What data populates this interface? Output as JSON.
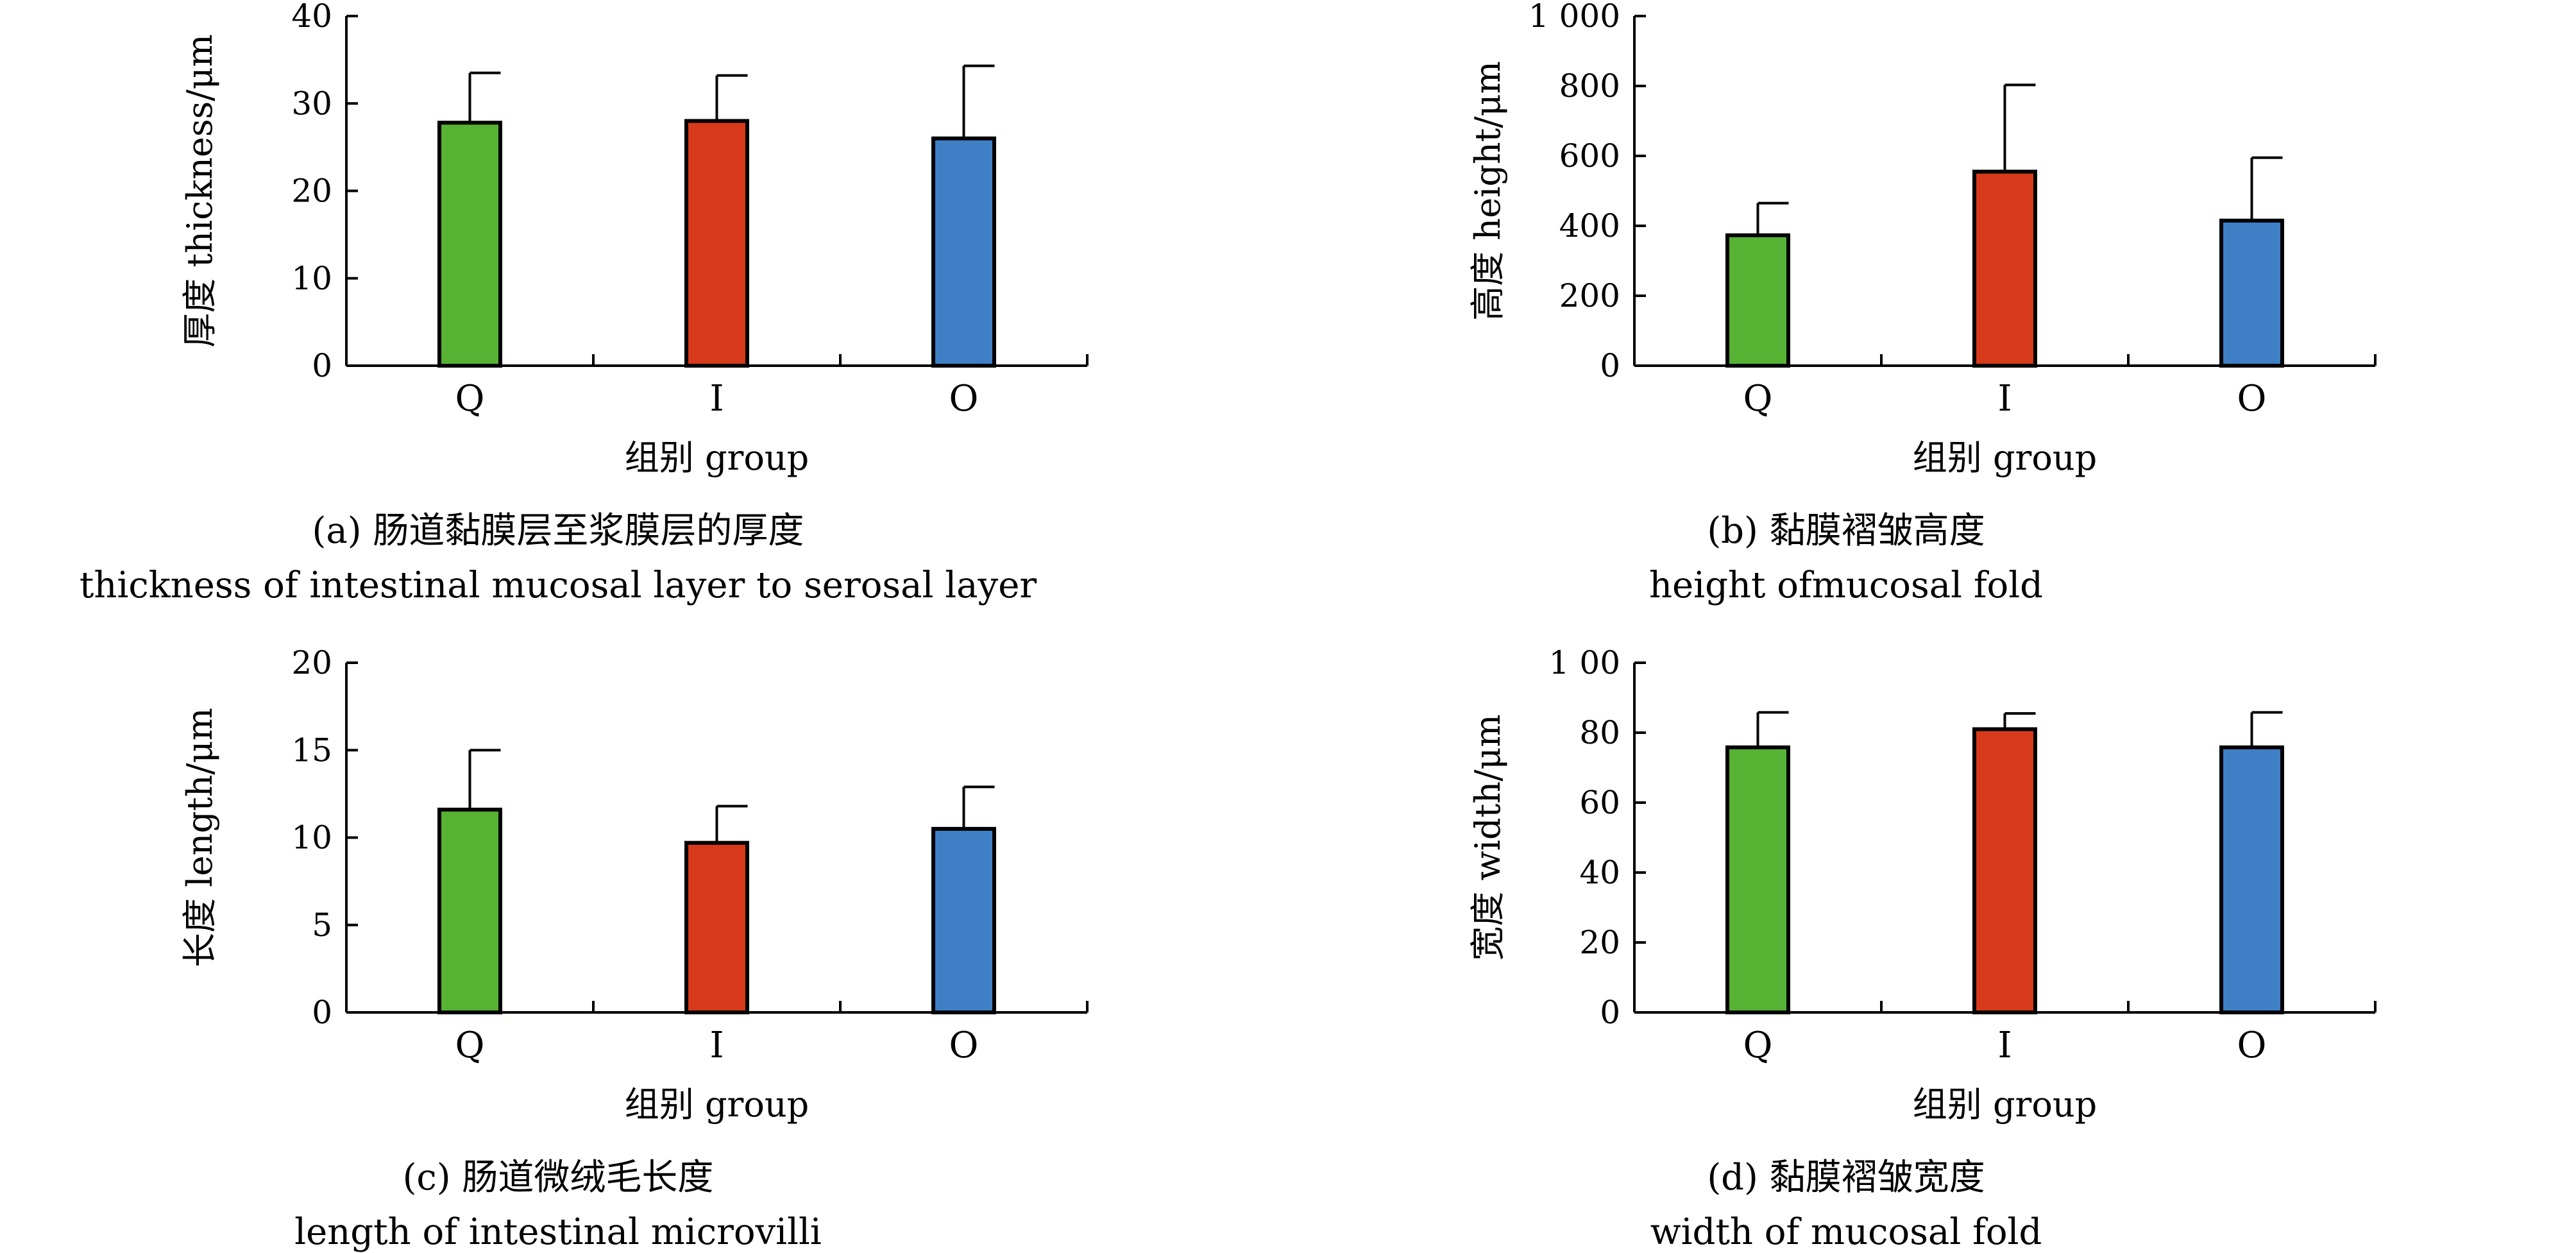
{
  "chart_data": [
    {
      "id": "a",
      "type": "bar",
      "categories": [
        "Q",
        "I",
        "O"
      ],
      "values": [
        27.8,
        28.0,
        26.0
      ],
      "errors": [
        5.7,
        5.2,
        8.3
      ],
      "colors": [
        "#56b233",
        "#d63a1b",
        "#3e7fc6"
      ],
      "ylabel": "厚度 thickness/μm",
      "xlabel": "组别 group",
      "ylim": [
        0,
        40
      ],
      "yticks": [
        0,
        10,
        20,
        30,
        40
      ],
      "ytick_labels": [
        "0",
        "10",
        "20",
        "30",
        "40"
      ],
      "caption_cn": "(a) 肠道黏膜层至浆膜层的厚度",
      "caption_en": "thickness of intestinal mucosal layer to serosal layer"
    },
    {
      "id": "b",
      "type": "bar",
      "categories": [
        "Q",
        "I",
        "O"
      ],
      "values": [
        373,
        555,
        415
      ],
      "errors": [
        92,
        248,
        180
      ],
      "colors": [
        "#56b233",
        "#d63a1b",
        "#3e7fc6"
      ],
      "ylabel": "高度 height/μm",
      "xlabel": "组别 group",
      "ylim": [
        0,
        1000
      ],
      "yticks": [
        0,
        200,
        400,
        600,
        800,
        1000
      ],
      "ytick_labels": [
        "0",
        "200",
        "400",
        "600",
        "800",
        "1 000"
      ],
      "caption_cn": "(b) 黏膜褶皱高度",
      "caption_en": "height ofmucosal fold"
    },
    {
      "id": "c",
      "type": "bar",
      "categories": [
        "Q",
        "I",
        "O"
      ],
      "values": [
        11.6,
        9.7,
        10.5
      ],
      "errors": [
        3.4,
        2.1,
        2.4
      ],
      "colors": [
        "#56b233",
        "#d63a1b",
        "#3e7fc6"
      ],
      "ylabel": "长度 length/μm",
      "xlabel": "组别 group",
      "ylim": [
        0,
        20
      ],
      "yticks": [
        0,
        5,
        10,
        15,
        20
      ],
      "ytick_labels": [
        "0",
        "5",
        "10",
        "15",
        "20"
      ],
      "caption_cn": "(c) 肠道微绒毛长度",
      "caption_en": "length of intestinal microvilli"
    },
    {
      "id": "d",
      "type": "bar",
      "categories": [
        "Q",
        "I",
        "O"
      ],
      "values": [
        75.8,
        81.0,
        75.8
      ],
      "errors": [
        10.0,
        4.5,
        10.0
      ],
      "colors": [
        "#56b233",
        "#d63a1b",
        "#3e7fc6"
      ],
      "ylabel": "宽度 width/μm",
      "xlabel": "组别 group",
      "ylim": [
        0,
        100
      ],
      "yticks": [
        0,
        20,
        40,
        60,
        80,
        100
      ],
      "ytick_labels": [
        "0",
        "20",
        "40",
        "60",
        "80",
        "1 00"
      ],
      "caption_cn": "(d) 黏膜褶皱宽度",
      "caption_en": "width of mucosal fold"
    }
  ]
}
